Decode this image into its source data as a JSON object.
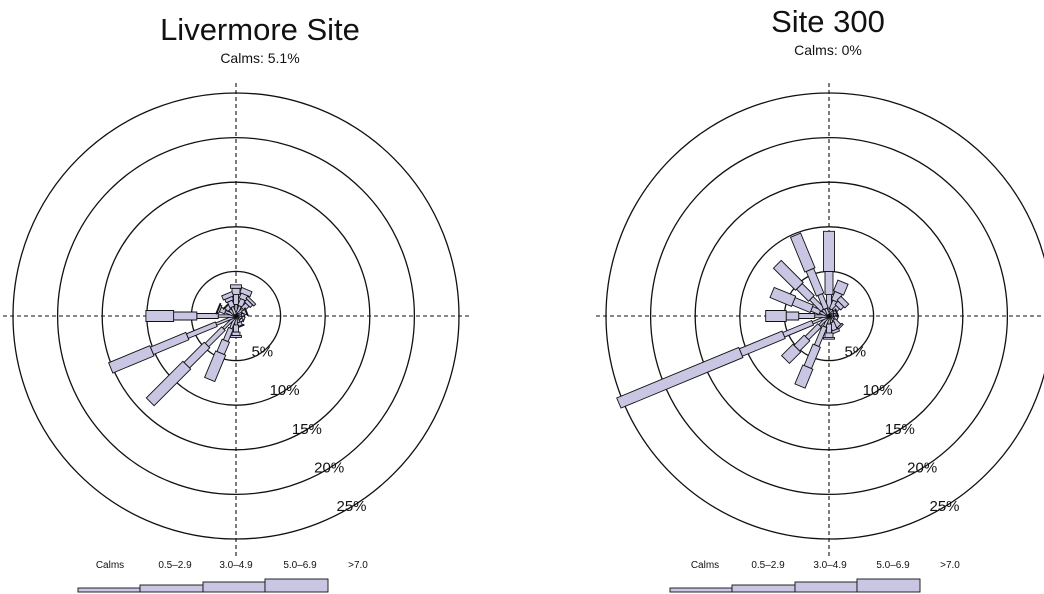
{
  "colors": {
    "fill": "#c8c6e3",
    "stroke": "#111111",
    "background": "#ffffff"
  },
  "chart_data": [
    {
      "type": "windrose",
      "title": "Livermore Site",
      "subtitle": "Calms: 5.1%",
      "radial_ticks": [
        "5%",
        "10%",
        "15%",
        "20%",
        "25%"
      ],
      "radial_values": [
        5,
        10,
        15,
        20,
        25
      ],
      "rmax": 25,
      "legend": {
        "labels": [
          "Calms",
          "0.5–2.9",
          "3.0–4.9",
          "5.0–6.9",
          ">7.0"
        ]
      },
      "calms_percent": 5.1,
      "directions": [
        0,
        22.5,
        45,
        67.5,
        90,
        112.5,
        135,
        157.5,
        180,
        202.5,
        225,
        247.5,
        270,
        292.5,
        315,
        337.5
      ],
      "series": [
        {
          "values": [
            1.3,
            1.2,
            1.1,
            0.8,
            0.6,
            0.7,
            0.6,
            0.8,
            1.0,
            1.5,
            2.0,
            2.4,
            2.0,
            1.3,
            1.0,
            1.1
          ]
        },
        {
          "values": [
            1.1,
            0.8,
            0.7,
            0.4,
            0.3,
            0.3,
            0.3,
            0.4,
            0.8,
            1.5,
            2.6,
            3.5,
            2.4,
            0.6,
            0.5,
            0.7
          ]
        },
        {
          "values": [
            0.7,
            0.6,
            0.4,
            0.1,
            0.0,
            0.0,
            0.0,
            0.1,
            0.4,
            1.5,
            3.2,
            4.3,
            2.6,
            0.2,
            0.1,
            0.4
          ]
        },
        {
          "values": [
            0.4,
            0.6,
            0.3,
            0.0,
            0.0,
            0.0,
            0.0,
            0.0,
            0.2,
            3.2,
            5.8,
            5.0,
            3.1,
            0.1,
            0.0,
            0.5
          ]
        }
      ]
    },
    {
      "type": "windrose",
      "title": "Site 300",
      "subtitle": "Calms: 0%",
      "radial_ticks": [
        "5%",
        "10%",
        "15%",
        "20%",
        "25%"
      ],
      "radial_values": [
        5,
        10,
        15,
        20,
        25
      ],
      "rmax": 25,
      "legend": {
        "labels": [
          "Calms",
          "0.5–2.9",
          "3.0–4.9",
          "5.0–6.9",
          ">7.0"
        ]
      },
      "calms_percent": 0,
      "directions": [
        0,
        22.5,
        45,
        67.5,
        90,
        112.5,
        135,
        157.5,
        180,
        202.5,
        225,
        247.5,
        270,
        292.5,
        315,
        337.5
      ],
      "series": [
        {
          "values": [
            0.8,
            0.8,
            0.8,
            0.6,
            0.5,
            0.6,
            0.7,
            0.8,
            0.9,
            1.3,
            1.5,
            2.0,
            1.6,
            1.1,
            1.0,
            0.9
          ]
        },
        {
          "values": [
            1.6,
            1.0,
            0.6,
            0.3,
            0.2,
            0.4,
            0.9,
            0.9,
            1.0,
            2.3,
            2.0,
            3.5,
            1.8,
            1.0,
            1.8,
            1.7
          ]
        },
        {
          "values": [
            2.6,
            1.0,
            0.5,
            0.1,
            0.0,
            0.0,
            0.2,
            0.3,
            0.5,
            2.6,
            1.6,
            5.2,
            1.4,
            2.2,
            1.9,
            3.0
          ]
        },
        {
          "values": [
            4.5,
            1.3,
            0.6,
            0.0,
            0.0,
            0.0,
            0.0,
            0.0,
            0.2,
            2.3,
            1.8,
            14.8,
            2.3,
            2.6,
            3.5,
            4.2
          ]
        }
      ]
    }
  ]
}
